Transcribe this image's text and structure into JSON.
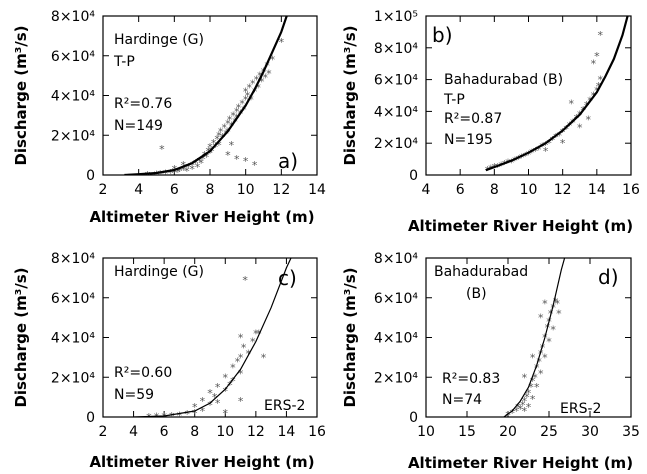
{
  "chart_data": [
    {
      "id": "a",
      "type": "scatter",
      "panel_label": "a)",
      "station": "Hardinge (G)",
      "mission": "T-P",
      "r2": "R²=0.76",
      "n": "N=149",
      "xlabel": "Altimeter River Height (m)",
      "ylabel": "Discharge (m³/s)",
      "xlim": [
        2,
        14
      ],
      "ylim": [
        0,
        80000
      ],
      "xticks": [
        2,
        4,
        6,
        8,
        10,
        12,
        14
      ],
      "yticks": [
        {
          "value": 0,
          "label": "0"
        },
        {
          "value": 20000,
          "label": "2×10⁴"
        },
        {
          "value": 40000,
          "label": "4×10⁴"
        },
        {
          "value": 60000,
          "label": "6×10⁴"
        },
        {
          "value": 80000,
          "label": "8×10⁴"
        }
      ],
      "fit_curve": [
        [
          3.2,
          0
        ],
        [
          4,
          400
        ],
        [
          5,
          1000
        ],
        [
          6,
          2500
        ],
        [
          7,
          6000
        ],
        [
          8,
          12000
        ],
        [
          9,
          22000
        ],
        [
          10,
          35000
        ],
        [
          10.5,
          43000
        ],
        [
          11,
          52000
        ],
        [
          11.5,
          62000
        ],
        [
          12,
          72000
        ],
        [
          12.3,
          80000
        ]
      ],
      "points": [
        [
          4.5,
          0
        ],
        [
          5,
          300
        ],
        [
          5.2,
          500
        ],
        [
          5.5,
          800
        ],
        [
          5.8,
          1000
        ],
        [
          6,
          1200
        ],
        [
          6,
          3000
        ],
        [
          6.2,
          1500
        ],
        [
          6.3,
          2000
        ],
        [
          6.5,
          2500
        ],
        [
          6.5,
          5000
        ],
        [
          6.7,
          2000
        ],
        [
          6.8,
          4000
        ],
        [
          7,
          5000
        ],
        [
          7,
          3000
        ],
        [
          7.2,
          6000
        ],
        [
          7.3,
          4000
        ],
        [
          7.4,
          7000
        ],
        [
          7.5,
          6000
        ],
        [
          7.6,
          8000
        ],
        [
          7.7,
          10000
        ],
        [
          7.8,
          9000
        ],
        [
          7.9,
          12000
        ],
        [
          8,
          11000
        ],
        [
          8,
          14000
        ],
        [
          8.1,
          12000
        ],
        [
          8.2,
          16000
        ],
        [
          8.3,
          14000
        ],
        [
          8.4,
          18000
        ],
        [
          8.5,
          15000
        ],
        [
          8.5,
          20000
        ],
        [
          8.6,
          22000
        ],
        [
          8.7,
          19000
        ],
        [
          8.8,
          24000
        ],
        [
          8.9,
          21000
        ],
        [
          9,
          26000
        ],
        [
          9,
          22000
        ],
        [
          9.1,
          28000
        ],
        [
          9.2,
          25000
        ],
        [
          9.3,
          30000
        ],
        [
          9.4,
          27000
        ],
        [
          9.5,
          32000
        ],
        [
          9.5,
          29000
        ],
        [
          9.6,
          34000
        ],
        [
          9.7,
          31000
        ],
        [
          9.8,
          36000
        ],
        [
          9.9,
          33000
        ],
        [
          10,
          38000
        ],
        [
          10,
          42000
        ],
        [
          10.1,
          40000
        ],
        [
          10.2,
          44000
        ],
        [
          10.3,
          38000
        ],
        [
          10.4,
          46000
        ],
        [
          10.5,
          42000
        ],
        [
          10.6,
          48000
        ],
        [
          10.7,
          44000
        ],
        [
          10.8,
          50000
        ],
        [
          10.9,
          47000
        ],
        [
          11,
          52000
        ],
        [
          11.1,
          49000
        ],
        [
          11.2,
          55000
        ],
        [
          11.3,
          51000
        ],
        [
          11.5,
          58000
        ],
        [
          12,
          67000
        ],
        [
          9,
          10000
        ],
        [
          9.5,
          8000
        ],
        [
          10,
          7000
        ],
        [
          10.5,
          5000
        ],
        [
          9.2,
          15000
        ],
        [
          5.3,
          13000
        ]
      ]
    },
    {
      "id": "b",
      "type": "scatter",
      "panel_label": "b)",
      "station": "Bahadurabad (B)",
      "mission": "T-P",
      "r2": "R²=0.87",
      "n": "N=195",
      "xlabel": "Altimeter River Height (m)",
      "ylabel": "Discharge (m³/s)",
      "xlim": [
        4,
        16
      ],
      "ylim": [
        0,
        100000
      ],
      "xticks": [
        4,
        6,
        8,
        10,
        12,
        14,
        16
      ],
      "yticks": [
        {
          "value": 0,
          "label": "0"
        },
        {
          "value": 20000,
          "label": "2×10⁴"
        },
        {
          "value": 40000,
          "label": "4×10⁴"
        },
        {
          "value": 60000,
          "label": "6×10⁴"
        },
        {
          "value": 80000,
          "label": "8×10⁴"
        },
        {
          "value": 100000,
          "label": "1×10⁵"
        }
      ],
      "fit_curve": [
        [
          7.5,
          3000
        ],
        [
          8,
          5000
        ],
        [
          9,
          9000
        ],
        [
          10,
          14000
        ],
        [
          11,
          20000
        ],
        [
          12,
          28000
        ],
        [
          13,
          38000
        ],
        [
          14,
          52000
        ],
        [
          14.5,
          62000
        ],
        [
          15,
          73000
        ],
        [
          15.5,
          88000
        ],
        [
          15.8,
          100000
        ]
      ],
      "points": [
        [
          7.6,
          3000
        ],
        [
          7.8,
          4000
        ],
        [
          8,
          5000
        ],
        [
          8.2,
          5000
        ],
        [
          8.4,
          6000
        ],
        [
          8.6,
          7000
        ],
        [
          8.8,
          8000
        ],
        [
          9,
          8000
        ],
        [
          9.2,
          9000
        ],
        [
          9.4,
          10000
        ],
        [
          9.6,
          11000
        ],
        [
          9.8,
          12000
        ],
        [
          10,
          13000
        ],
        [
          10.2,
          14000
        ],
        [
          10.4,
          15000
        ],
        [
          10.6,
          16000
        ],
        [
          10.8,
          18000
        ],
        [
          11,
          19000
        ],
        [
          11.2,
          20000
        ],
        [
          11.4,
          22000
        ],
        [
          11.6,
          24000
        ],
        [
          11.8,
          25000
        ],
        [
          12,
          27000
        ],
        [
          12.2,
          29000
        ],
        [
          12.4,
          31000
        ],
        [
          12.6,
          33000
        ],
        [
          12.8,
          36000
        ],
        [
          13,
          38000
        ],
        [
          13.2,
          41000
        ],
        [
          13.4,
          44000
        ],
        [
          13.6,
          47000
        ],
        [
          13.8,
          50000
        ],
        [
          14,
          53000
        ],
        [
          14.1,
          56000
        ],
        [
          14.2,
          60000
        ],
        [
          13,
          30000
        ],
        [
          13.5,
          35000
        ],
        [
          12.5,
          45000
        ],
        [
          14,
          75000
        ],
        [
          14.2,
          88000
        ],
        [
          13.8,
          70000
        ],
        [
          12,
          20000
        ],
        [
          11,
          15000
        ]
      ]
    },
    {
      "id": "c",
      "type": "scatter",
      "panel_label": "c)",
      "station": "Hardinge (G)",
      "mission": "ERS-2",
      "r2": "R²=0.60",
      "n": "N=59",
      "xlabel": "Altimeter River Height (m)",
      "ylabel": "Discharge (m³/s)",
      "xlim": [
        2,
        16
      ],
      "ylim": [
        0,
        80000
      ],
      "xticks": [
        2,
        4,
        6,
        8,
        10,
        12,
        14,
        16
      ],
      "yticks": [
        {
          "value": 0,
          "label": "0"
        },
        {
          "value": 20000,
          "label": "2×10⁴"
        },
        {
          "value": 40000,
          "label": "4×10⁴"
        },
        {
          "value": 60000,
          "label": "6×10⁴"
        },
        {
          "value": 80000,
          "label": "8×10⁴"
        }
      ],
      "fit_curve": [
        [
          4,
          0
        ],
        [
          6,
          500
        ],
        [
          8,
          3000
        ],
        [
          9,
          7000
        ],
        [
          10,
          14000
        ],
        [
          11,
          24000
        ],
        [
          12,
          38000
        ],
        [
          13,
          55000
        ],
        [
          14,
          75000
        ],
        [
          14.3,
          80000
        ]
      ],
      "points": [
        [
          5,
          0
        ],
        [
          5.5,
          200
        ],
        [
          6,
          300
        ],
        [
          6.5,
          500
        ],
        [
          7,
          800
        ],
        [
          7.5,
          1500
        ],
        [
          8,
          2000
        ],
        [
          8,
          5000
        ],
        [
          8.5,
          3000
        ],
        [
          8.5,
          8000
        ],
        [
          9,
          6000
        ],
        [
          9,
          12000
        ],
        [
          9.3,
          10000
        ],
        [
          9.5,
          15000
        ],
        [
          9.5,
          7000
        ],
        [
          10,
          20000
        ],
        [
          10,
          13000
        ],
        [
          10.3,
          16000
        ],
        [
          10.5,
          25000
        ],
        [
          10.5,
          18000
        ],
        [
          10.8,
          28000
        ],
        [
          11,
          30000
        ],
        [
          11,
          22000
        ],
        [
          11.2,
          35000
        ],
        [
          11.5,
          32000
        ],
        [
          11.8,
          38000
        ],
        [
          12,
          42000
        ],
        [
          12.2,
          42000
        ],
        [
          11,
          40000
        ],
        [
          11.3,
          69000
        ],
        [
          12.5,
          30000
        ],
        [
          10,
          2000
        ],
        [
          11,
          8000
        ]
      ]
    },
    {
      "id": "d",
      "type": "scatter",
      "panel_label": "d)",
      "station": "Bahadurabad",
      "station_sub": "(B)",
      "mission": "ERS-2",
      "r2": "R²=0.83",
      "n": "N=74",
      "xlabel": "Altimeter River Height (m)",
      "ylabel": "Discharge (m³/s)",
      "xlim": [
        10,
        35
      ],
      "ylim": [
        0,
        80000
      ],
      "xticks": [
        10,
        15,
        20,
        25,
        30,
        35
      ],
      "yticks": [
        {
          "value": 0,
          "label": "0"
        },
        {
          "value": 20000,
          "label": "2×10⁴"
        },
        {
          "value": 40000,
          "label": "4×10⁴"
        },
        {
          "value": 60000,
          "label": "6×10⁴"
        },
        {
          "value": 80000,
          "label": "8×10⁴"
        }
      ],
      "fit_curve": [
        [
          19.5,
          0
        ],
        [
          20.5,
          3000
        ],
        [
          21.5,
          8000
        ],
        [
          22.5,
          15000
        ],
        [
          23.5,
          26000
        ],
        [
          24.5,
          40000
        ],
        [
          25.5,
          56000
        ],
        [
          26.5,
          74000
        ],
        [
          26.9,
          80000
        ]
      ],
      "points": [
        [
          20,
          1000
        ],
        [
          20.5,
          2000
        ],
        [
          21,
          3000
        ],
        [
          21.2,
          5000
        ],
        [
          21.5,
          4000
        ],
        [
          21.8,
          6000
        ],
        [
          22,
          8000
        ],
        [
          22,
          3000
        ],
        [
          22.3,
          10000
        ],
        [
          22.5,
          12000
        ],
        [
          22.5,
          5000
        ],
        [
          22.8,
          15000
        ],
        [
          23,
          18000
        ],
        [
          23,
          9000
        ],
        [
          23.3,
          20000
        ],
        [
          23.5,
          25000
        ],
        [
          23.5,
          15000
        ],
        [
          23.8,
          28000
        ],
        [
          24,
          32000
        ],
        [
          24,
          22000
        ],
        [
          24.2,
          35000
        ],
        [
          24.5,
          40000
        ],
        [
          24.5,
          30000
        ],
        [
          24.8,
          45000
        ],
        [
          25,
          48000
        ],
        [
          25,
          38000
        ],
        [
          25.2,
          52000
        ],
        [
          25.5,
          55000
        ],
        [
          25.5,
          44000
        ],
        [
          25.8,
          58000
        ],
        [
          26,
          57000
        ],
        [
          26.2,
          52000
        ],
        [
          24.5,
          57000
        ],
        [
          23,
          30000
        ],
        [
          22,
          20000
        ],
        [
          24,
          50000
        ]
      ]
    }
  ]
}
